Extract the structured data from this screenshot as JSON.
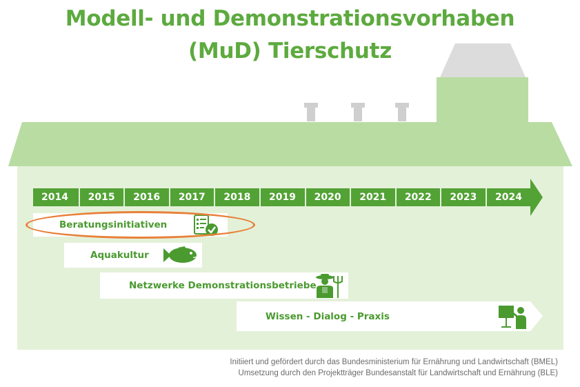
{
  "title": {
    "line1": "Modell- und Demonstrationsvorhaben",
    "line2": "(MuD) Tierschutz"
  },
  "timeline": {
    "years": [
      "2014",
      "2015",
      "2016",
      "2017",
      "2018",
      "2019",
      "2020",
      "2021",
      "2022",
      "2023",
      "2024"
    ]
  },
  "projects": [
    {
      "label": "Beratungsinitiativen",
      "icon": "checklist-icon",
      "highlighted": true
    },
    {
      "label": "Aquakultur",
      "icon": "fish-icon"
    },
    {
      "label": "Netzwerke Demonstrationsbetriebe",
      "icon": "farmer-icon"
    },
    {
      "label": "Wissen - Dialog - Praxis",
      "icon": "presentation-icon"
    }
  ],
  "footer": {
    "line1": "Initiiert und gefördert durch das Bundesministerium für Ernährung und Landwirtschaft (BMEL)",
    "line2": "Umsetzung durch den Projektträger Bundesanstalt für Landwirtschaft und Ernährung (BLE)"
  },
  "colors": {
    "accent_green": "#52a235",
    "title_green": "#5daa3f",
    "roof_green": "#b9dca2",
    "wall_green": "#e4f1d9",
    "highlight_orange": "#e8803a"
  }
}
